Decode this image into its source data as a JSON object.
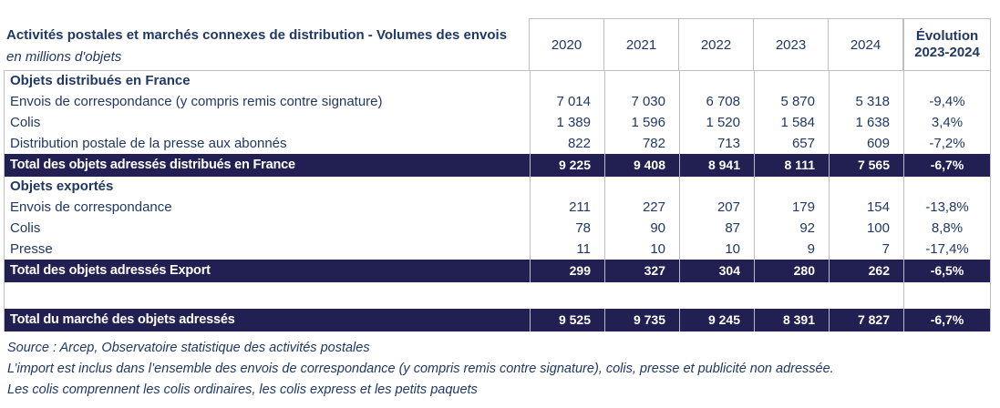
{
  "colors": {
    "text_navy": "#203864",
    "total_row_bg": "#221f52",
    "border_grey": "#bfbfbf",
    "total_row_text": "#ffffff"
  },
  "table": {
    "title": "Activités postales et marchés connexes de distribution  - Volumes des envois",
    "subtitle": "en millions d'objets",
    "columns": [
      "2020",
      "2021",
      "2022",
      "2023",
      "2024"
    ],
    "evolution_header": [
      "Évolution",
      "2023-2024"
    ],
    "rows": [
      {
        "type": "section",
        "label": "Objets distribués en France"
      },
      {
        "type": "data",
        "label": "Envois de correspondance (y compris remis contre signature)",
        "values": [
          "7 014",
          "7 030",
          "6 708",
          "5 870",
          "5 318"
        ],
        "evolution": "-9,4%"
      },
      {
        "type": "data",
        "label": "Colis",
        "values": [
          "1 389",
          "1 596",
          "1 520",
          "1 584",
          "1 638"
        ],
        "evolution": "3,4%"
      },
      {
        "type": "data",
        "label": "Distribution postale de la presse aux abonnés",
        "values": [
          "822",
          "782",
          "713",
          "657",
          "609"
        ],
        "evolution": "-7,2%"
      },
      {
        "type": "total",
        "label": "Total des objets adressés distribués en France",
        "values": [
          "9 225",
          "9 408",
          "8 941",
          "8 111",
          "7 565"
        ],
        "evolution": "-6,7%"
      },
      {
        "type": "section",
        "label": "Objets exportés"
      },
      {
        "type": "data",
        "label": "Envois de correspondance",
        "values": [
          "211",
          "227",
          "207",
          "179",
          "154"
        ],
        "evolution": "-13,8%"
      },
      {
        "type": "data",
        "label": "Colis",
        "values": [
          "78",
          "90",
          "87",
          "92",
          "100"
        ],
        "evolution": "8,8%"
      },
      {
        "type": "data",
        "label": "Presse",
        "values": [
          "11",
          "10",
          "10",
          "9",
          "7"
        ],
        "evolution": "-17,4%"
      },
      {
        "type": "total",
        "label": "Total des objets adressés Export",
        "values": [
          "299",
          "327",
          "304",
          "280",
          "262"
        ],
        "evolution": "-6,5%"
      },
      {
        "type": "spacer"
      },
      {
        "type": "total",
        "label": "Total du marché des objets adressés",
        "values": [
          "9 525",
          "9 735",
          "9 245",
          "8 391",
          "7 827"
        ],
        "evolution": "-6,7%"
      }
    ]
  },
  "footnotes": [
    "Source : Arcep, Observatoire statistique des activités postales",
    "L’import est inclus dans l’ensemble des envois de correspondance (y compris remis contre signature), colis, presse et publicité non adressée.",
    "Les colis comprennent les colis ordinaires, les colis express et les petits paquets"
  ]
}
